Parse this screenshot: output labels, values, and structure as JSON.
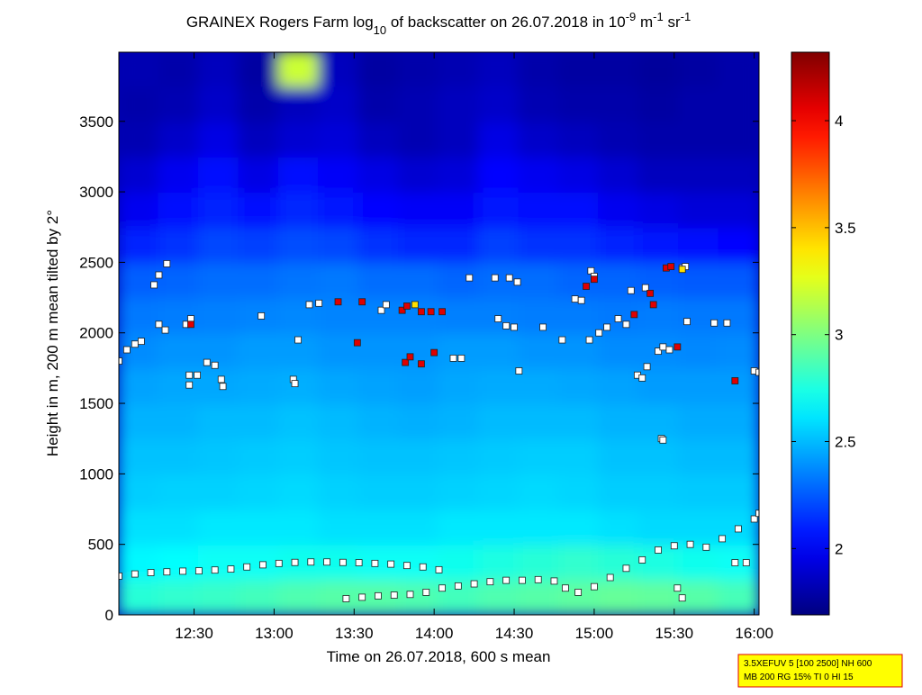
{
  "chart_data": {
    "type": "heatmap",
    "title": [
      {
        "text": "GRAINEX Rogers Farm log"
      },
      {
        "text": "10",
        "shift": "sub"
      },
      {
        "text": " of backscatter on 26.07.2018 in 10"
      },
      {
        "text": "-9",
        "shift": "super"
      },
      {
        "text": " m"
      },
      {
        "text": "-1",
        "shift": "super"
      },
      {
        "text": " sr"
      },
      {
        "text": "-1",
        "shift": "super"
      }
    ],
    "xlabel": "Time on 26.07.2018, 600 s mean",
    "ylabel": "Height in m, 200 m mean tilted by 2°",
    "xlim": [
      12.03,
      16.03
    ],
    "xticks": [
      {
        "value": 12.5,
        "label": "12:30"
      },
      {
        "value": 13,
        "label": "13:00"
      },
      {
        "value": 13.5,
        "label": "13:30"
      },
      {
        "value": 14,
        "label": "14:00"
      },
      {
        "value": 14.5,
        "label": "14:30"
      },
      {
        "value": 15,
        "label": "15:00"
      },
      {
        "value": 15.5,
        "label": "15:30"
      },
      {
        "value": 16,
        "label": "16:00"
      }
    ],
    "ylim": [
      0,
      3990
    ],
    "yticks": [
      0,
      500,
      1000,
      1500,
      2000,
      2500,
      3000,
      3500
    ],
    "clim": [
      1.69,
      4.32
    ],
    "cticks": [
      2,
      2.5,
      3,
      3.5,
      4
    ],
    "colormap": "jet",
    "heatmap": {
      "x_edges": [
        12.03,
        12.28,
        12.53,
        12.78,
        13.03,
        13.28,
        13.53,
        13.78,
        14.03,
        14.28,
        14.53,
        14.78,
        15.03,
        15.28,
        15.53,
        15.78,
        16.03
      ],
      "y_edges": [
        0,
        250,
        500,
        750,
        1000,
        1250,
        1500,
        1750,
        2000,
        2250,
        2500,
        2750,
        3000,
        3250,
        3500,
        3750,
        4000
      ],
      "z": [
        [
          2.78,
          2.8,
          2.82,
          2.85,
          2.88,
          2.9,
          2.9,
          2.88,
          2.85,
          2.88,
          2.9,
          2.92,
          2.94,
          2.93,
          2.9,
          2.86
        ],
        [
          2.66,
          2.68,
          2.7,
          2.7,
          2.72,
          2.72,
          2.7,
          2.7,
          2.72,
          2.75,
          2.78,
          2.8,
          2.78,
          2.75,
          2.72,
          2.7
        ],
        [
          2.6,
          2.6,
          2.62,
          2.62,
          2.62,
          2.6,
          2.6,
          2.6,
          2.62,
          2.62,
          2.62,
          2.62,
          2.6,
          2.58,
          2.58,
          2.58
        ],
        [
          2.55,
          2.56,
          2.56,
          2.57,
          2.58,
          2.56,
          2.55,
          2.55,
          2.56,
          2.57,
          2.58,
          2.57,
          2.55,
          2.55,
          2.54,
          2.54
        ],
        [
          2.52,
          2.52,
          2.53,
          2.54,
          2.55,
          2.53,
          2.52,
          2.52,
          2.53,
          2.54,
          2.55,
          2.55,
          2.52,
          2.52,
          2.5,
          2.5
        ],
        [
          2.48,
          2.48,
          2.5,
          2.5,
          2.52,
          2.5,
          2.48,
          2.47,
          2.48,
          2.5,
          2.5,
          2.5,
          2.48,
          2.48,
          2.46,
          2.46
        ],
        [
          2.44,
          2.45,
          2.45,
          2.46,
          2.47,
          2.45,
          2.44,
          2.43,
          2.45,
          2.46,
          2.46,
          2.45,
          2.44,
          2.42,
          2.42,
          2.42
        ],
        [
          2.38,
          2.4,
          2.4,
          2.42,
          2.42,
          2.4,
          2.4,
          2.4,
          2.42,
          2.42,
          2.4,
          2.4,
          2.38,
          2.38,
          2.37,
          2.38
        ],
        [
          2.33,
          2.34,
          2.35,
          2.36,
          2.37,
          2.36,
          2.36,
          2.36,
          2.35,
          2.35,
          2.34,
          2.34,
          2.33,
          2.34,
          2.33,
          2.33
        ],
        [
          2.26,
          2.28,
          2.3,
          2.3,
          2.32,
          2.33,
          2.3,
          2.3,
          2.28,
          2.3,
          2.3,
          2.28,
          2.28,
          2.26,
          2.25,
          2.25
        ],
        [
          2.1,
          2.15,
          2.2,
          2.18,
          2.22,
          2.2,
          2.15,
          2.12,
          2.12,
          2.18,
          2.15,
          2.15,
          2.1,
          2.08,
          2.05,
          2.02
        ],
        [
          1.98,
          2.05,
          2.1,
          2.05,
          2.12,
          2.08,
          2.02,
          2.0,
          2.0,
          2.08,
          2.05,
          2.05,
          1.98,
          1.95,
          1.92,
          1.92
        ],
        [
          1.9,
          1.98,
          2.05,
          1.95,
          2.05,
          2.0,
          1.95,
          1.9,
          1.92,
          2.02,
          1.98,
          1.95,
          1.9,
          1.85,
          1.85,
          1.85
        ],
        [
          1.82,
          1.88,
          1.95,
          1.85,
          1.9,
          1.92,
          1.85,
          1.82,
          1.85,
          1.95,
          1.88,
          1.85,
          1.82,
          1.8,
          1.8,
          1.8
        ],
        [
          1.8,
          1.82,
          1.88,
          1.8,
          1.85,
          1.88,
          1.8,
          1.82,
          1.85,
          1.88,
          1.82,
          1.8,
          1.8,
          1.78,
          1.8,
          1.8
        ],
        [
          1.82,
          1.8,
          1.85,
          1.78,
          3.2,
          1.85,
          1.78,
          1.8,
          1.82,
          1.85,
          1.8,
          1.78,
          1.78,
          1.76,
          1.78,
          1.8
        ]
      ]
    },
    "series": [
      {
        "color": "#ffffff",
        "x": [
          12.03,
          12.08,
          12.13,
          12.17,
          12.25,
          12.28,
          12.33,
          12.28,
          12.32,
          12.45,
          12.48,
          12.47,
          12.47,
          12.52,
          12.58,
          12.63,
          12.67,
          12.68,
          12.92,
          13.12,
          13.13,
          13.15,
          13.22,
          13.28,
          13.67,
          13.7,
          14.12,
          14.17,
          14.22,
          14.38,
          14.47,
          14.52,
          14.4,
          14.45,
          14.5,
          14.53,
          14.68,
          14.8,
          14.88,
          14.92,
          14.98,
          15.0,
          14.97,
          15.03,
          15.08,
          15.15,
          15.2,
          15.27,
          15.3,
          15.33,
          15.23,
          15.32,
          15.4,
          15.43,
          15.47,
          15.55,
          15.57,
          15.42,
          15.43,
          15.58,
          15.75,
          15.83,
          16.0,
          16.03
        ],
        "values": [
          1800,
          1880,
          1920,
          1940,
          2340,
          2410,
          2490,
          2060,
          2020,
          2060,
          2100,
          1700,
          1630,
          1700,
          1790,
          1770,
          1670,
          1620,
          2120,
          1670,
          1640,
          1950,
          2200,
          2210,
          2160,
          2200,
          1820,
          1820,
          2390,
          2390,
          2390,
          2360,
          2100,
          2050,
          2040,
          1730,
          2040,
          1950,
          2240,
          2230,
          2440,
          2400,
          1950,
          2000,
          2040,
          2100,
          2060,
          1700,
          1680,
          1760,
          2300,
          2320,
          1870,
          1900,
          1880,
          2460,
          2470,
          1250,
          1240,
          2080,
          2070,
          2070,
          1730,
          1720
        ]
      },
      {
        "color": "#e00000",
        "x": [
          12.48,
          13.4,
          13.55,
          13.52,
          13.8,
          13.83,
          13.92,
          13.98,
          14.05,
          13.82,
          13.85,
          13.92,
          14.0,
          14.95,
          15.0,
          15.25,
          15.37,
          15.35,
          15.45,
          15.48,
          15.52,
          15.88
        ],
        "values": [
          2060,
          2220,
          2220,
          1930,
          2160,
          2190,
          2150,
          2150,
          2150,
          1790,
          1830,
          1780,
          1860,
          2330,
          2380,
          2130,
          2200,
          2280,
          2460,
          2470,
          1900,
          1660
        ]
      },
      {
        "color": "#ffe000",
        "x": [
          13.88,
          15.55
        ],
        "values": [
          2200,
          2450
        ]
      },
      {
        "color": "#ffffff",
        "x": [
          12.03,
          12.13,
          12.23,
          12.33,
          12.43,
          12.53,
          12.63,
          12.73,
          12.83,
          12.93,
          13.03,
          13.13,
          13.23,
          13.33,
          13.43,
          13.53,
          13.63,
          13.73,
          13.83,
          13.93,
          14.03,
          13.45,
          13.55,
          13.65,
          13.75,
          13.85,
          13.95,
          14.05,
          14.15,
          14.25,
          14.35,
          14.45,
          14.55,
          14.65,
          14.75,
          14.82,
          14.9,
          15.0,
          15.1,
          15.2,
          15.3,
          15.4,
          15.5,
          15.6,
          15.7,
          15.8,
          15.9,
          16.0,
          16.03,
          15.88,
          15.95,
          15.52,
          15.55
        ],
        "values": [
          275,
          290,
          300,
          305,
          310,
          312,
          318,
          325,
          340,
          355,
          365,
          372,
          375,
          375,
          372,
          370,
          365,
          360,
          350,
          340,
          320,
          115,
          125,
          135,
          140,
          145,
          160,
          190,
          205,
          220,
          235,
          245,
          245,
          250,
          240,
          190,
          160,
          200,
          265,
          330,
          390,
          460,
          490,
          500,
          480,
          540,
          610,
          680,
          720,
          370,
          370,
          190,
          120
        ]
      }
    ],
    "annotation_lines": [
      "3.5XEFUV 5 [100 2500] NH 600",
      "MB 200 RG 15% TI 0 HI 15"
    ]
  }
}
